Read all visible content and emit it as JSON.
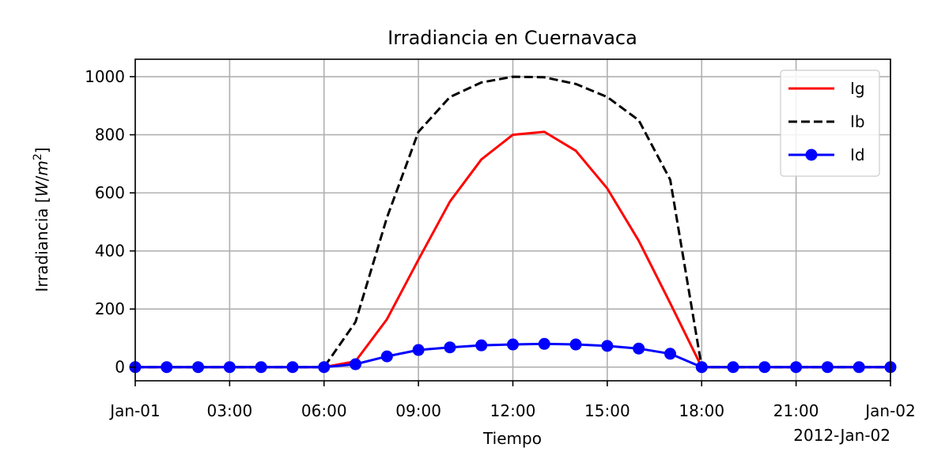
{
  "chart_data": {
    "type": "line",
    "title": "Irradiancia en Cuernavaca",
    "xlabel": "Tiempo",
    "ylabel": "Irradiancia [W/m²]",
    "ylabel_parts": {
      "main": "Irradiancia [",
      "unit_w": "W",
      "unit_slash": "/",
      "unit_m": "m",
      "unit_exp": "2",
      "close": "]"
    },
    "x": [
      "2012-01-01 00:00",
      "2012-01-01 01:00",
      "2012-01-01 02:00",
      "2012-01-01 03:00",
      "2012-01-01 04:00",
      "2012-01-01 05:00",
      "2012-01-01 06:00",
      "2012-01-01 07:00",
      "2012-01-01 08:00",
      "2012-01-01 09:00",
      "2012-01-01 10:00",
      "2012-01-01 11:00",
      "2012-01-01 12:00",
      "2012-01-01 13:00",
      "2012-01-01 14:00",
      "2012-01-01 15:00",
      "2012-01-01 16:00",
      "2012-01-01 17:00",
      "2012-01-01 18:00",
      "2012-01-01 19:00",
      "2012-01-01 20:00",
      "2012-01-01 21:00",
      "2012-01-01 22:00",
      "2012-01-01 23:00",
      "2012-01-02 00:00"
    ],
    "xlim": [
      "2012-01-01 00:00",
      "2012-01-02 00:00"
    ],
    "ylim": [
      -47,
      1060
    ],
    "x_ticks": [
      {
        "hour": 0,
        "label": "Jan-01"
      },
      {
        "hour": 3,
        "label": "03:00"
      },
      {
        "hour": 6,
        "label": "06:00"
      },
      {
        "hour": 9,
        "label": "09:00"
      },
      {
        "hour": 12,
        "label": "12:00"
      },
      {
        "hour": 15,
        "label": "15:00"
      },
      {
        "hour": 18,
        "label": "18:00"
      },
      {
        "hour": 21,
        "label": "21:00"
      },
      {
        "hour": 24,
        "label": "Jan-02"
      }
    ],
    "x_offset_label": "2012-Jan-02",
    "y_ticks": [
      0,
      200,
      400,
      600,
      800,
      1000
    ],
    "grid": true,
    "legend_position": "top-right",
    "series": [
      {
        "name": "Ig",
        "color": "#ff0000",
        "style": "solid",
        "marker": "none",
        "values": [
          0,
          0,
          0,
          0,
          0,
          0,
          0,
          20,
          165,
          370,
          570,
          715,
          800,
          810,
          745,
          615,
          435,
          220,
          0,
          0,
          0,
          0,
          0,
          0,
          0
        ]
      },
      {
        "name": "Ib",
        "color": "#000000",
        "style": "dashed",
        "marker": "none",
        "values": [
          0,
          0,
          0,
          0,
          0,
          0,
          0,
          155,
          515,
          810,
          930,
          980,
          1000,
          998,
          975,
          930,
          850,
          645,
          0,
          0,
          0,
          0,
          0,
          0,
          0
        ]
      },
      {
        "name": "Id",
        "color": "#0000ff",
        "style": "solid",
        "marker": "circle",
        "values": [
          0,
          0,
          0,
          0,
          0,
          0,
          0,
          10,
          37,
          59,
          68,
          75,
          78,
          80,
          78,
          73,
          64,
          46,
          0,
          0,
          0,
          0,
          0,
          0,
          0
        ]
      }
    ]
  }
}
